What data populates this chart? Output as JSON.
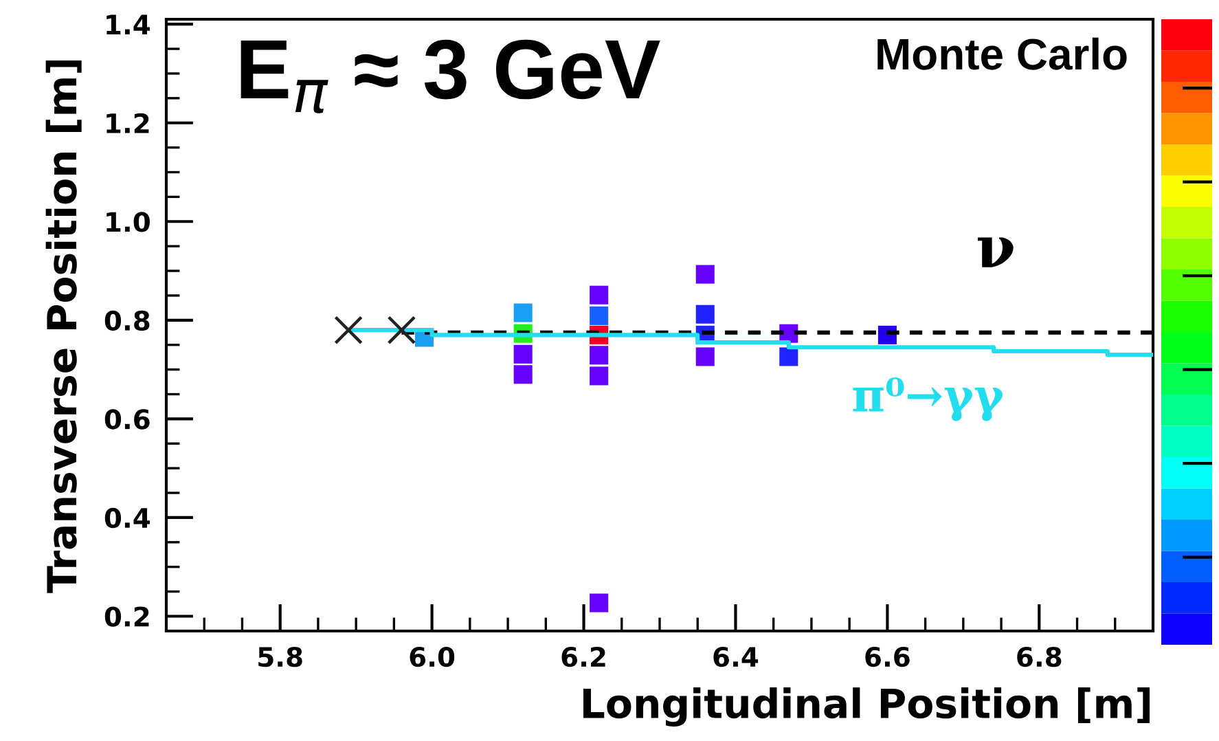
{
  "chart_data": {
    "type": "scatter",
    "xlabel": "Longitudinal Position [m]",
    "ylabel": "Transverse Position [m]",
    "annotations": [
      "E$_{π}$ ≈ 3 GeV",
      "Monte Carlo"
    ],
    "xlim": [
      5.65,
      6.95
    ],
    "xticks": [
      5.8,
      {
        "value": 6,
        "label": "6.0"
      },
      6.2,
      6.4,
      6.6,
      6.8
    ],
    "ylim": [
      0.17,
      1.41
    ],
    "yticks": [
      0.2,
      0.4,
      0.6,
      0.8,
      {
        "value": 1,
        "label": "1.0"
      },
      1.2,
      1.4
    ],
    "grid": false,
    "legend": false,
    "series": [
      {
        "marker": "square",
        "x": [
          5.99,
          6.12,
          6.12,
          6.12,
          6.12,
          6.22,
          6.22,
          6.22,
          6.22,
          6.22,
          6.22,
          6.36,
          6.36,
          6.36,
          6.36,
          6.47,
          6.47,
          6.6
        ],
        "values": [
          0.765,
          0.815,
          0.773,
          0.731,
          0.69,
          0.851,
          0.809,
          0.77,
          0.729,
          0.687,
          0.227,
          0.893,
          0.812,
          0.77,
          0.726,
          0.773,
          0.726,
          0.77
        ],
        "colors": [
          "#1aa0f0",
          "#1a9ff5",
          "#22ee22",
          "#6600ff",
          "#6600ff",
          "#6600ff",
          "#1a5fff",
          "#ee0022",
          "#6600ff",
          "#6600ff",
          "#6600ff",
          "#6600ff",
          "#2222ff",
          "#2222ff",
          "#6600ff",
          "#6600ff",
          "#2222ff",
          "#2200ee"
        ]
      },
      {
        "type": "line",
        "name": "ν",
        "color": "#000000",
        "line_style": "dashed",
        "x": [
          5.96,
          6.95
        ],
        "values": [
          0.775,
          0.775
        ]
      },
      {
        "type": "step",
        "name": "π⁰→γγ",
        "color": "#22ddee",
        "x": [
          5.89,
          6.0,
          6.35,
          6.47,
          6.74,
          6.89,
          6.95
        ],
        "values": [
          0.78,
          0.77,
          0.755,
          0.745,
          0.737,
          0.73,
          0.73
        ]
      },
      {
        "marker": "cross",
        "color": "#222222",
        "x": [
          5.89,
          5.96
        ],
        "values": [
          0.78,
          0.78
        ]
      }
    ]
  }
}
